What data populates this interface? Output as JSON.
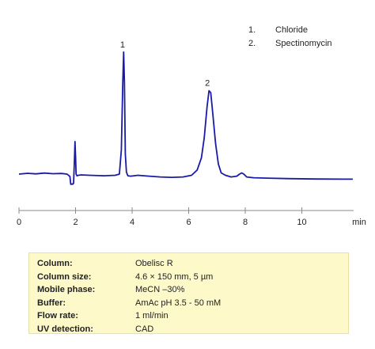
{
  "chart_data": {
    "type": "line",
    "xlabel": "min",
    "xlim": [
      0,
      12
    ],
    "x_ticks": [
      0,
      2,
      4,
      6,
      8,
      10
    ],
    "x_tick_labels": [
      "0",
      "2",
      "4",
      "6",
      "8",
      "10"
    ],
    "grid": false,
    "line_color": "#1a1aa8",
    "series": [
      {
        "x": [
          0.0,
          0.3,
          0.6,
          0.9,
          1.2,
          1.5,
          1.7,
          1.8,
          1.83,
          1.86,
          1.88,
          1.9,
          1.93,
          1.96,
          1.98,
          2.0,
          2.02,
          2.05,
          2.1,
          2.2,
          2.5,
          3.0,
          3.4,
          3.55,
          3.62,
          3.67,
          3.7,
          3.73,
          3.76,
          3.8,
          3.85,
          3.95,
          4.2,
          4.6,
          5.0,
          5.4,
          5.8,
          6.1,
          6.3,
          6.45,
          6.55,
          6.65,
          6.72,
          6.78,
          6.85,
          6.95,
          7.05,
          7.15,
          7.3,
          7.5,
          7.7,
          7.8,
          7.87,
          7.95,
          8.05,
          8.3,
          8.8,
          9.5,
          10.5,
          11.5,
          11.8
        ],
        "y": [
          0.0,
          0.004,
          0.001,
          0.005,
          0.002,
          0.003,
          0.0,
          -0.012,
          -0.05,
          -0.05,
          -0.048,
          -0.05,
          -0.045,
          0.07,
          0.16,
          0.09,
          0.0,
          -0.008,
          -0.006,
          -0.004,
          -0.006,
          -0.008,
          -0.006,
          0.0,
          0.12,
          0.45,
          0.6,
          0.45,
          0.1,
          0.01,
          -0.008,
          -0.01,
          -0.006,
          -0.01,
          -0.014,
          -0.016,
          -0.014,
          -0.006,
          0.02,
          0.08,
          0.18,
          0.33,
          0.41,
          0.4,
          0.3,
          0.15,
          0.05,
          0.006,
          -0.006,
          -0.014,
          -0.01,
          0.0,
          0.006,
          0.0,
          -0.014,
          -0.018,
          -0.02,
          -0.022,
          -0.024,
          -0.025,
          -0.025
        ]
      }
    ],
    "annotations": [
      {
        "text": "1",
        "x": 3.72,
        "y": 0.6
      },
      {
        "text": "2",
        "x": 6.72,
        "y": 0.41
      }
    ]
  },
  "legend": [
    {
      "num": "1.",
      "name": "Chloride"
    },
    {
      "num": "2.",
      "name": "Spectinomycin"
    }
  ],
  "conditions": [
    {
      "label": "Column:",
      "value": "Obelisc R"
    },
    {
      "label": "Column size:",
      "value": "4.6 × 150 mm, 5 µm"
    },
    {
      "label": "Mobile phase:",
      "value": "MeCN –30%"
    },
    {
      "label": "Buffer:",
      "value": "AmAc pH 3.5 - 50 mM"
    },
    {
      "label": "Flow rate:",
      "value": "1 ml/min"
    },
    {
      "label": "UV detection:",
      "value": "CAD"
    }
  ]
}
